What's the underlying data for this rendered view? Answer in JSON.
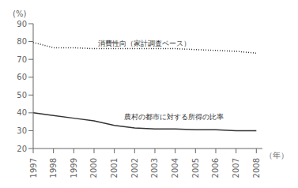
{
  "chart_data": {
    "type": "line",
    "x": [
      1997,
      1998,
      1999,
      2000,
      2001,
      2002,
      2003,
      2004,
      2005,
      2006,
      2007,
      2008
    ],
    "xlim": [
      1997,
      2008.3
    ],
    "xticks": [
      1997,
      1998,
      1999,
      2000,
      2001,
      2002,
      2003,
      2004,
      2005,
      2006,
      2007,
      2008
    ],
    "ylim": [
      20,
      90
    ],
    "yticks": [
      20,
      30,
      40,
      50,
      60,
      70,
      80,
      90
    ],
    "ylabel": "(%)",
    "xlabel": "（年）",
    "grid": false,
    "series": [
      {
        "color": "#333333",
        "line_style": "dotted",
        "values": [
          79.5,
          76.5,
          76.5,
          76.0,
          76.0,
          76.0,
          76.0,
          76.0,
          75.5,
          75.0,
          74.5,
          73.5
        ]
      },
      {
        "color": "#333333",
        "line_style": "solid",
        "values": [
          40.0,
          38.5,
          37.0,
          35.5,
          33.0,
          31.5,
          31.0,
          31.0,
          30.5,
          30.5,
          30.0,
          30.0
        ]
      }
    ],
    "annotations": [
      {
        "text": "消費性向（家計調査ベース）",
        "x": 2000.2,
        "y": 77.5
      },
      {
        "text": "農村の都市に対する所得の比率",
        "x": 2001.5,
        "y": 36.5
      }
    ]
  }
}
